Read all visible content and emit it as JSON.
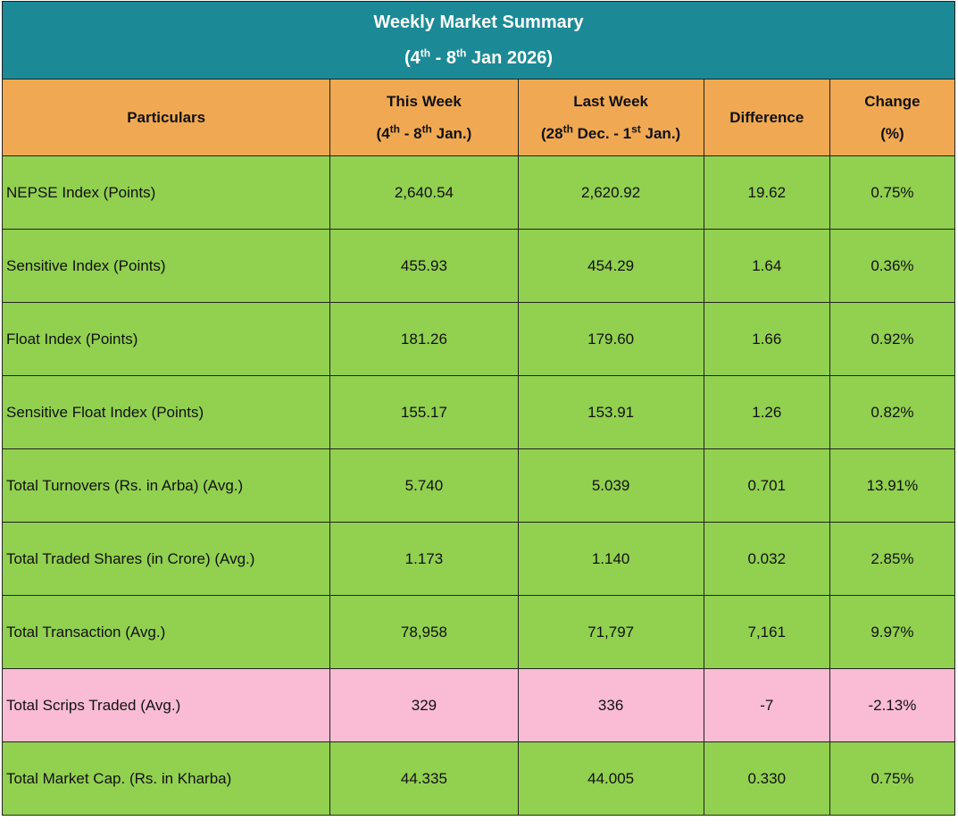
{
  "header": {
    "title": "Weekly Market Summary",
    "subtitle": [
      "(4",
      "th",
      " - 8",
      "th",
      " Jan 2026)"
    ],
    "color": "#1b8a96"
  },
  "table": {
    "header_color": "#f0a952",
    "columns": [
      [
        [
          "Particulars"
        ]
      ],
      [
        [
          "This Week"
        ],
        [
          "(4",
          "th",
          "  - 8",
          "th",
          " Jan.)"
        ]
      ],
      [
        [
          "Last Week"
        ],
        [
          "(28",
          "th",
          " Dec. - 1",
          "st",
          " Jan.)"
        ]
      ],
      [
        [
          "Difference"
        ]
      ],
      [
        [
          "Change"
        ],
        [
          "(%)"
        ]
      ]
    ],
    "rows": [
      {
        "color": "#92d050",
        "cells": [
          "NEPSE Index (Points)",
          "2,640.54",
          "2,620.92",
          "19.62",
          "0.75%"
        ]
      },
      {
        "color": "#92d050",
        "cells": [
          "Sensitive Index (Points)",
          "455.93",
          "454.29",
          "1.64",
          "0.36%"
        ]
      },
      {
        "color": "#92d050",
        "cells": [
          "Float Index (Points)",
          "181.26",
          "179.60",
          "1.66",
          "0.92%"
        ]
      },
      {
        "color": "#92d050",
        "cells": [
          "Sensitive Float Index (Points)",
          "155.17",
          "153.91",
          "1.26",
          "0.82%"
        ]
      },
      {
        "color": "#92d050",
        "cells": [
          "Total Turnovers (Rs. in Arba) (Avg.)",
          "5.740",
          "5.039",
          "0.701",
          "13.91%"
        ]
      },
      {
        "color": "#92d050",
        "cells": [
          "Total Traded Shares (in Crore) (Avg.)",
          "1.173",
          "1.140",
          "0.032",
          "2.85%"
        ]
      },
      {
        "color": "#92d050",
        "cells": [
          "Total Transaction (Avg.)",
          "78,958",
          "71,797",
          "7,161",
          "9.97%"
        ]
      },
      {
        "color": "#f9bcd4",
        "cells": [
          "Total Scrips Traded (Avg.)",
          "329",
          "336",
          "-7",
          "-2.13%"
        ]
      },
      {
        "color": "#92d050",
        "cells": [
          "Total Market Cap. (Rs. in Kharba)",
          "44.335",
          "44.005",
          "0.330",
          "0.75%"
        ]
      }
    ]
  }
}
